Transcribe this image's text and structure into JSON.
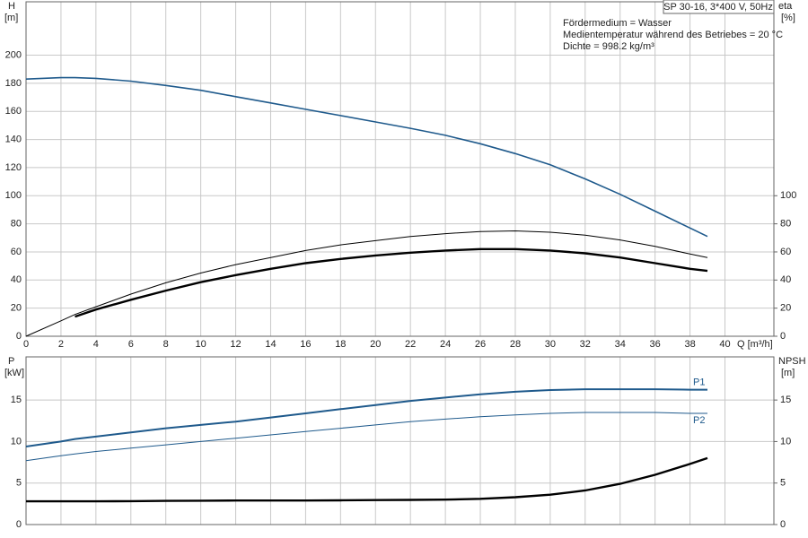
{
  "chart_data": [
    {
      "type": "line",
      "title": "SP 30-16, 3*400 V, 50Hz",
      "annotations": [
        "Fördermedium = Wasser",
        "Medientemperatur während des Betriebes = 20 °C",
        "Dichte = 998.2 kg/m³"
      ],
      "ylabel": "H",
      "yunit": "[m]",
      "y2label": "eta",
      "y2unit": "[%]",
      "xlabel": "Q [m³/h]",
      "x": [
        0,
        2,
        2.8,
        4,
        6,
        8,
        10,
        12,
        14,
        16,
        18,
        20,
        22,
        24,
        26,
        28,
        30,
        32,
        34,
        36,
        38,
        39
      ],
      "xlim": [
        0,
        42.8
      ],
      "xticks": [
        0,
        2,
        4,
        6,
        8,
        10,
        12,
        14,
        16,
        18,
        20,
        22,
        24,
        26,
        28,
        30,
        32,
        34,
        36,
        38,
        40
      ],
      "ylim": [
        0,
        238
      ],
      "yticks": [
        0,
        20,
        40,
        60,
        80,
        100,
        120,
        140,
        160,
        180,
        200
      ],
      "y2lim": [
        0,
        238
      ],
      "y2ticks": [
        0,
        20,
        40,
        60,
        80,
        100
      ],
      "grid": true,
      "series": [
        {
          "color": "#1f5a8c",
          "width": 1.6,
          "axis": "y",
          "values": [
            183,
            184,
            184,
            183.5,
            181.5,
            178.5,
            175,
            170.5,
            166,
            161.5,
            157,
            152.5,
            148,
            143,
            137,
            130,
            122,
            112,
            101,
            89,
            77,
            71
          ]
        },
        {
          "color": "#000000",
          "width": 1,
          "axis": "y2",
          "values": [
            0,
            11,
            15.5,
            21,
            30,
            38,
            45,
            51,
            56,
            61,
            65,
            68,
            71,
            73,
            74.5,
            75,
            74,
            72,
            68.5,
            64,
            58.5,
            56
          ]
        },
        {
          "color": "#000000",
          "width": 2.4,
          "axis": "y2",
          "values": [
            null,
            null,
            14,
            19,
            26,
            32.5,
            38.5,
            43.5,
            48,
            52,
            55,
            57.5,
            59.5,
            61,
            62,
            62,
            61,
            59,
            56,
            52,
            48,
            46.5
          ]
        }
      ]
    },
    {
      "type": "line",
      "ylabel": "P",
      "yunit": "[kW]",
      "y2label": "NPSH",
      "y2unit": "[m]",
      "x": [
        0,
        2,
        2.8,
        4,
        6,
        8,
        10,
        12,
        14,
        16,
        18,
        20,
        22,
        24,
        26,
        28,
        30,
        32,
        34,
        36,
        38,
        39
      ],
      "xlim": [
        0,
        42.8
      ],
      "ylim": [
        0,
        20.2
      ],
      "yticks": [
        0,
        5,
        10,
        15
      ],
      "y2lim": [
        0,
        20.2
      ],
      "y2ticks": [
        0,
        5,
        10,
        15
      ],
      "grid": true,
      "series": [
        {
          "name": "P1",
          "color": "#1f5a8c",
          "width": 2,
          "axis": "y",
          "values": [
            9.4,
            10.0,
            10.3,
            10.6,
            11.1,
            11.6,
            12.0,
            12.4,
            12.9,
            13.4,
            13.9,
            14.4,
            14.9,
            15.3,
            15.7,
            16.0,
            16.2,
            16.3,
            16.3,
            16.3,
            16.25,
            16.25
          ]
        },
        {
          "name": "P2",
          "color": "#1f5a8c",
          "width": 1,
          "axis": "y",
          "values": [
            7.7,
            8.3,
            8.5,
            8.8,
            9.2,
            9.6,
            10.0,
            10.4,
            10.8,
            11.2,
            11.6,
            12.0,
            12.4,
            12.7,
            13.0,
            13.2,
            13.4,
            13.5,
            13.5,
            13.5,
            13.4,
            13.4
          ]
        },
        {
          "color": "#000000",
          "width": 2.4,
          "axis": "y2",
          "values": [
            2.8,
            2.8,
            2.8,
            2.8,
            2.82,
            2.85,
            2.87,
            2.9,
            2.9,
            2.9,
            2.92,
            2.95,
            2.97,
            3.0,
            3.1,
            3.3,
            3.6,
            4.1,
            4.9,
            6.0,
            7.3,
            8.0
          ]
        }
      ]
    }
  ]
}
